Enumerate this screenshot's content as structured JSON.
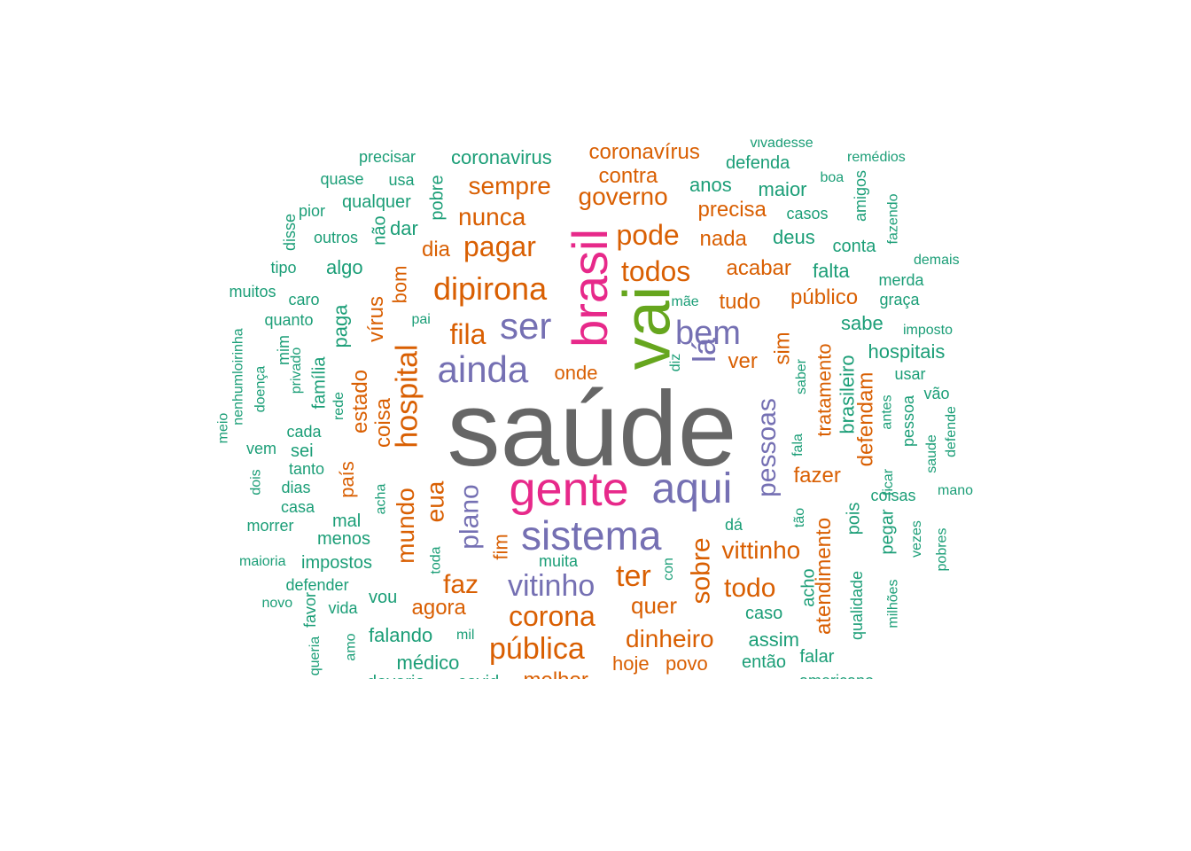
{
  "colors": {
    "g": "#1b9e77",
    "o": "#d95f02",
    "p": "#7570b3",
    "m": "#e7298a",
    "l": "#66a61e",
    "d": "#666666"
  },
  "words": [
    {
      "t": "saúde",
      "c": "d"
    },
    {
      "t": "vai",
      "c": "l"
    },
    {
      "t": "brasil",
      "c": "m"
    },
    {
      "t": "gente",
      "c": "m"
    },
    {
      "t": "aqui",
      "c": "p"
    },
    {
      "t": "sistema",
      "c": "p"
    },
    {
      "t": "ainda",
      "c": "p"
    },
    {
      "t": "ser",
      "c": "p"
    },
    {
      "t": "bem",
      "c": "p"
    },
    {
      "t": "lá",
      "c": "p"
    },
    {
      "t": "pessoas",
      "c": "p"
    },
    {
      "t": "plano",
      "c": "p"
    },
    {
      "t": "vitinho",
      "c": "p"
    },
    {
      "t": "dipirona",
      "c": "o"
    },
    {
      "t": "pagar",
      "c": "o"
    },
    {
      "t": "nunca",
      "c": "o"
    },
    {
      "t": "sempre",
      "c": "o"
    },
    {
      "t": "governo",
      "c": "o"
    },
    {
      "t": "pode",
      "c": "o"
    },
    {
      "t": "todos",
      "c": "o"
    },
    {
      "t": "contra",
      "c": "o"
    },
    {
      "t": "coronavírus",
      "c": "o"
    },
    {
      "t": "precisa",
      "c": "o"
    },
    {
      "t": "nada",
      "c": "o"
    },
    {
      "t": "acabar",
      "c": "o"
    },
    {
      "t": "tudo",
      "c": "o"
    },
    {
      "t": "público",
      "c": "o"
    },
    {
      "t": "ver",
      "c": "o"
    },
    {
      "t": "sim",
      "c": "o"
    },
    {
      "t": "fila",
      "c": "o"
    },
    {
      "t": "onde",
      "c": "o"
    },
    {
      "t": "hospital",
      "c": "o"
    },
    {
      "t": "bom",
      "c": "o"
    },
    {
      "t": "vírus",
      "c": "o"
    },
    {
      "t": "dia",
      "c": "o"
    },
    {
      "t": "coisa",
      "c": "o"
    },
    {
      "t": "estado",
      "c": "o"
    },
    {
      "t": "mundo",
      "c": "o"
    },
    {
      "t": "eua",
      "c": "o"
    },
    {
      "t": "país",
      "c": "o"
    },
    {
      "t": "fim",
      "c": "o"
    },
    {
      "t": "faz",
      "c": "o"
    },
    {
      "t": "ter",
      "c": "o"
    },
    {
      "t": "sobre",
      "c": "o"
    },
    {
      "t": "vittinho",
      "c": "o"
    },
    {
      "t": "todo",
      "c": "o"
    },
    {
      "t": "fazer",
      "c": "o"
    },
    {
      "t": "tratamento",
      "c": "o"
    },
    {
      "t": "atendimento",
      "c": "o"
    },
    {
      "t": "defendam",
      "c": "o"
    },
    {
      "t": "corona",
      "c": "o"
    },
    {
      "t": "pública",
      "c": "o"
    },
    {
      "t": "dinheiro",
      "c": "o"
    },
    {
      "t": "agora",
      "c": "o"
    },
    {
      "t": "quer",
      "c": "o"
    },
    {
      "t": "hoje",
      "c": "o"
    },
    {
      "t": "povo",
      "c": "o"
    },
    {
      "t": "melhor",
      "c": "o"
    },
    {
      "t": "coronavirus",
      "c": "g"
    },
    {
      "t": "precisar",
      "c": "g"
    },
    {
      "t": "quase",
      "c": "g"
    },
    {
      "t": "usa",
      "c": "g"
    },
    {
      "t": "qualquer",
      "c": "g"
    },
    {
      "t": "pior",
      "c": "g"
    },
    {
      "t": "pobre",
      "c": "g"
    },
    {
      "t": "não",
      "c": "g"
    },
    {
      "t": "dar",
      "c": "g"
    },
    {
      "t": "disse",
      "c": "g"
    },
    {
      "t": "outros",
      "c": "g"
    },
    {
      "t": "tipo",
      "c": "g"
    },
    {
      "t": "algo",
      "c": "g"
    },
    {
      "t": "muitos",
      "c": "g"
    },
    {
      "t": "caro",
      "c": "g"
    },
    {
      "t": "quanto",
      "c": "g"
    },
    {
      "t": "pai",
      "c": "g"
    },
    {
      "t": "paga",
      "c": "g"
    },
    {
      "t": "nenhumloirinha",
      "c": "g"
    },
    {
      "t": "mim",
      "c": "g"
    },
    {
      "t": "privado",
      "c": "g"
    },
    {
      "t": "doença",
      "c": "g"
    },
    {
      "t": "família",
      "c": "g"
    },
    {
      "t": "rede",
      "c": "g"
    },
    {
      "t": "meio",
      "c": "g"
    },
    {
      "t": "cada",
      "c": "g"
    },
    {
      "t": "vem",
      "c": "g"
    },
    {
      "t": "sei",
      "c": "g"
    },
    {
      "t": "tanto",
      "c": "g"
    },
    {
      "t": "dois",
      "c": "g"
    },
    {
      "t": "dias",
      "c": "g"
    },
    {
      "t": "acha",
      "c": "g"
    },
    {
      "t": "casa",
      "c": "g"
    },
    {
      "t": "mal",
      "c": "g"
    },
    {
      "t": "morrer",
      "c": "g"
    },
    {
      "t": "menos",
      "c": "g"
    },
    {
      "t": "maioria",
      "c": "g"
    },
    {
      "t": "impostos",
      "c": "g"
    },
    {
      "t": "toda",
      "c": "g"
    },
    {
      "t": "muita",
      "c": "g"
    },
    {
      "t": "defender",
      "c": "g"
    },
    {
      "t": "vou",
      "c": "g"
    },
    {
      "t": "novo",
      "c": "g"
    },
    {
      "t": "favor",
      "c": "g"
    },
    {
      "t": "vida",
      "c": "g"
    },
    {
      "t": "falando",
      "c": "g"
    },
    {
      "t": "amo",
      "c": "g"
    },
    {
      "t": "mil",
      "c": "g"
    },
    {
      "t": "queria",
      "c": "g"
    },
    {
      "t": "médico",
      "c": "g"
    },
    {
      "t": "deveria",
      "c": "g"
    },
    {
      "t": "covid",
      "c": "g"
    },
    {
      "t": "con",
      "c": "g"
    },
    {
      "t": "diz",
      "c": "g"
    },
    {
      "t": "mãe",
      "c": "g"
    },
    {
      "t": "dá",
      "c": "g"
    },
    {
      "t": "caso",
      "c": "g"
    },
    {
      "t": "assim",
      "c": "g"
    },
    {
      "t": "então",
      "c": "g"
    },
    {
      "t": "anos",
      "c": "g"
    },
    {
      "t": "maior",
      "c": "g"
    },
    {
      "t": "defenda",
      "c": "g"
    },
    {
      "t": "vivadesse",
      "c": "g"
    },
    {
      "t": "casos",
      "c": "g"
    },
    {
      "t": "deus",
      "c": "g"
    },
    {
      "t": "boa",
      "c": "g"
    },
    {
      "t": "remédios",
      "c": "g"
    },
    {
      "t": "amigos",
      "c": "g"
    },
    {
      "t": "fazendo",
      "c": "g"
    },
    {
      "t": "conta",
      "c": "g"
    },
    {
      "t": "demais",
      "c": "g"
    },
    {
      "t": "falta",
      "c": "g"
    },
    {
      "t": "merda",
      "c": "g"
    },
    {
      "t": "graça",
      "c": "g"
    },
    {
      "t": "sabe",
      "c": "g"
    },
    {
      "t": "imposto",
      "c": "g"
    },
    {
      "t": "hospitais",
      "c": "g"
    },
    {
      "t": "saber",
      "c": "g"
    },
    {
      "t": "brasileiro",
      "c": "g"
    },
    {
      "t": "usar",
      "c": "g"
    },
    {
      "t": "vão",
      "c": "g"
    },
    {
      "t": "pessoa",
      "c": "g"
    },
    {
      "t": "antes",
      "c": "g"
    },
    {
      "t": "saude",
      "c": "g"
    },
    {
      "t": "defende",
      "c": "g"
    },
    {
      "t": "fala",
      "c": "g"
    },
    {
      "t": "ficar",
      "c": "g"
    },
    {
      "t": "coisas",
      "c": "g"
    },
    {
      "t": "mano",
      "c": "g"
    },
    {
      "t": "tão",
      "c": "g"
    },
    {
      "t": "pois",
      "c": "g"
    },
    {
      "t": "pegar",
      "c": "g"
    },
    {
      "t": "vezes",
      "c": "g"
    },
    {
      "t": "pobres",
      "c": "g"
    },
    {
      "t": "acho",
      "c": "g"
    },
    {
      "t": "qualidade",
      "c": "g"
    },
    {
      "t": "milhões",
      "c": "g"
    },
    {
      "t": "falar",
      "c": "g"
    },
    {
      "t": "americano",
      "c": "g"
    }
  ]
}
